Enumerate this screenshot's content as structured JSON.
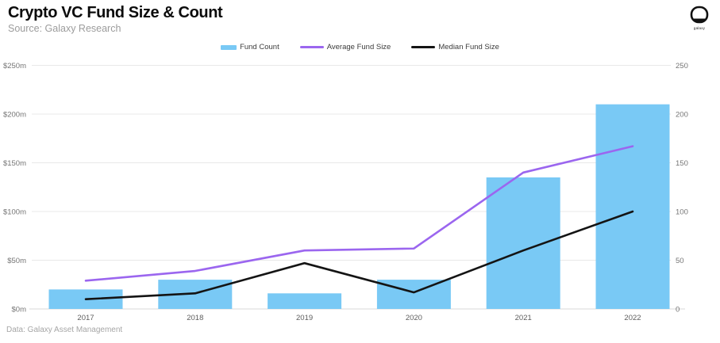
{
  "header": {
    "title": "Crypto VC Fund Size & Count",
    "subtitle": "Source: Galaxy Research"
  },
  "logo": {
    "label": "galaxy"
  },
  "footer": {
    "note": "Data: Galaxy Asset Management"
  },
  "colors": {
    "bar": "#79C9F5",
    "average_line": "#9B66EF",
    "median_line": "#141414",
    "grid": "#E8E8E8",
    "baseline": "#D8D8D8",
    "axis_text": "#757575"
  },
  "chart_data": {
    "type": "bar",
    "subtype": "bar-and-lines-dual-axis",
    "categories": [
      "2017",
      "2018",
      "2019",
      "2020",
      "2021",
      "2022"
    ],
    "series": [
      {
        "name": "Fund Count",
        "type": "bar",
        "axis": "right",
        "color": "#79C9F5",
        "values": [
          20,
          30,
          16,
          30,
          135,
          210
        ]
      },
      {
        "name": "Average Fund Size",
        "type": "line",
        "axis": "left",
        "color": "#9B66EF",
        "values": [
          29,
          39,
          60,
          62,
          140,
          167
        ]
      },
      {
        "name": "Median Fund Size",
        "type": "line",
        "axis": "left",
        "color": "#141414",
        "values": [
          10,
          16,
          47,
          17,
          60,
          100
        ]
      }
    ],
    "left_axis": {
      "label_format": "$m",
      "ticks": [
        "$0m",
        "$50m",
        "$100m",
        "$150m",
        "$200m",
        "$250m"
      ],
      "min": 0,
      "max": 250
    },
    "right_axis": {
      "ticks": [
        "0",
        "50",
        "100",
        "150",
        "200",
        "250"
      ],
      "min": 0,
      "max": 250
    },
    "grid": "horizontal",
    "legend_position": "top-center",
    "title": "Crypto VC Fund Size & Count"
  }
}
